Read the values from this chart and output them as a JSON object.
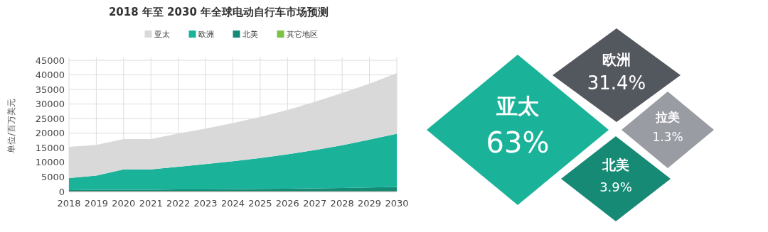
{
  "chart_data": [
    {
      "type": "area",
      "title": "2018 年至 2030 年全球电动自行车市场预测",
      "ylabel": "单位/百万美元",
      "categories": [
        "2018",
        "2019",
        "2020",
        "2021",
        "2022",
        "2023",
        "2024",
        "2025",
        "2026",
        "2027",
        "2028",
        "2029",
        "2030"
      ],
      "stacked": true,
      "legend": "top",
      "grid": true,
      "ylim": [
        0,
        45000
      ],
      "yticks": [
        0,
        5000,
        10000,
        15000,
        20000,
        25000,
        30000,
        35000,
        40000,
        45000
      ],
      "series": [
        {
          "name": "其它地区",
          "color": "#7dc242",
          "values": [
            100,
            100,
            100,
            100,
            100,
            100,
            100,
            100,
            100,
            100,
            100,
            100,
            100
          ]
        },
        {
          "name": "北美",
          "color": "#158a74",
          "values": [
            400,
            500,
            500,
            500,
            600,
            600,
            700,
            800,
            900,
            1000,
            1100,
            1300,
            1500
          ]
        },
        {
          "name": "欧洲",
          "color": "#1ab39a",
          "values": [
            4100,
            4900,
            7000,
            7000,
            7800,
            8700,
            9600,
            10600,
            11800,
            13100,
            14700,
            16400,
            18200
          ]
        },
        {
          "name": "亚太",
          "color": "#d9d9d9",
          "values": [
            10700,
            10500,
            10400,
            10400,
            11400,
            12200,
            13100,
            14100,
            15200,
            16600,
            17900,
            19200,
            20800
          ]
        }
      ]
    },
    {
      "type": "other",
      "categories": [
        "亚太",
        "欧洲",
        "拉美",
        "北美"
      ],
      "values": [
        63,
        31.4,
        1.3,
        3.9
      ],
      "value_labels": [
        "63%",
        "31.4%",
        "1.3%",
        "3.9%"
      ],
      "colors": [
        "#1ab39a",
        "#53575e",
        "#9a9ca3",
        "#168a74"
      ]
    }
  ]
}
